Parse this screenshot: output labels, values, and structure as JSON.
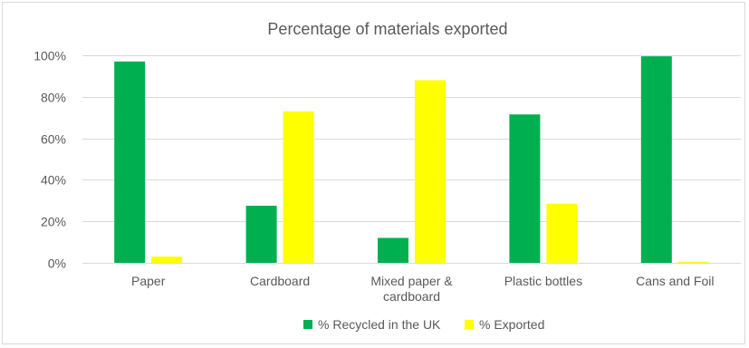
{
  "chart_data": {
    "type": "bar",
    "title": "Percentage of materials exported",
    "categories": [
      [
        "Paper"
      ],
      [
        "Cardboard"
      ],
      [
        "Mixed paper &",
        "cardboard"
      ],
      [
        "Plastic bottles"
      ],
      [
        "Cans and Foil"
      ]
    ],
    "series": [
      {
        "name": "% Recycled in the UK",
        "color": "#00b050",
        "values": [
          97,
          27.5,
          12,
          71.5,
          99.5
        ]
      },
      {
        "name": "% Exported",
        "color": "#ffff00",
        "values": [
          3,
          73,
          88,
          28.5,
          0.5
        ]
      }
    ],
    "ylim": [
      0,
      100
    ],
    "yticks": [
      0,
      20,
      40,
      60,
      80,
      100
    ],
    "ytick_labels": [
      "0%",
      "20%",
      "40%",
      "60%",
      "80%",
      "100%"
    ],
    "grid": true,
    "legend": "bottom"
  }
}
